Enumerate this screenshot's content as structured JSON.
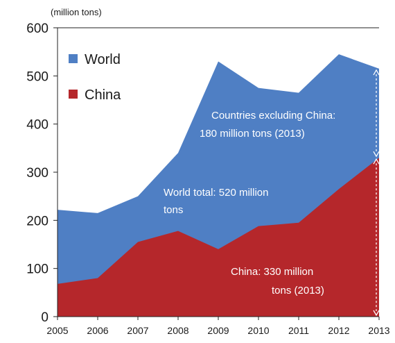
{
  "chart_data": {
    "type": "area",
    "unit_label": "(million tons)",
    "x": [
      "2005",
      "2006",
      "2007",
      "2008",
      "2009",
      "2010",
      "2011",
      "2012",
      "2013"
    ],
    "ylim": [
      0,
      600
    ],
    "yticks": [
      0,
      100,
      200,
      300,
      400,
      500,
      600
    ],
    "series": [
      {
        "name": "World",
        "color": "#4f7fc4",
        "values": [
          222,
          215,
          250,
          340,
          530,
          475,
          465,
          545,
          515
        ]
      },
      {
        "name": "China",
        "color": "#b5272b",
        "values": [
          68,
          80,
          155,
          178,
          140,
          188,
          195,
          265,
          330
        ]
      }
    ],
    "annotations": {
      "excluding_line1": "Countries excluding China:",
      "excluding_line2": "180 million tons (2013)",
      "world_line1": "World total: 520 million",
      "world_line2": "tons",
      "china_line1": "China: 330 million",
      "china_line2": "tons (2013)"
    },
    "grid": false,
    "legend_position": "top-left"
  }
}
